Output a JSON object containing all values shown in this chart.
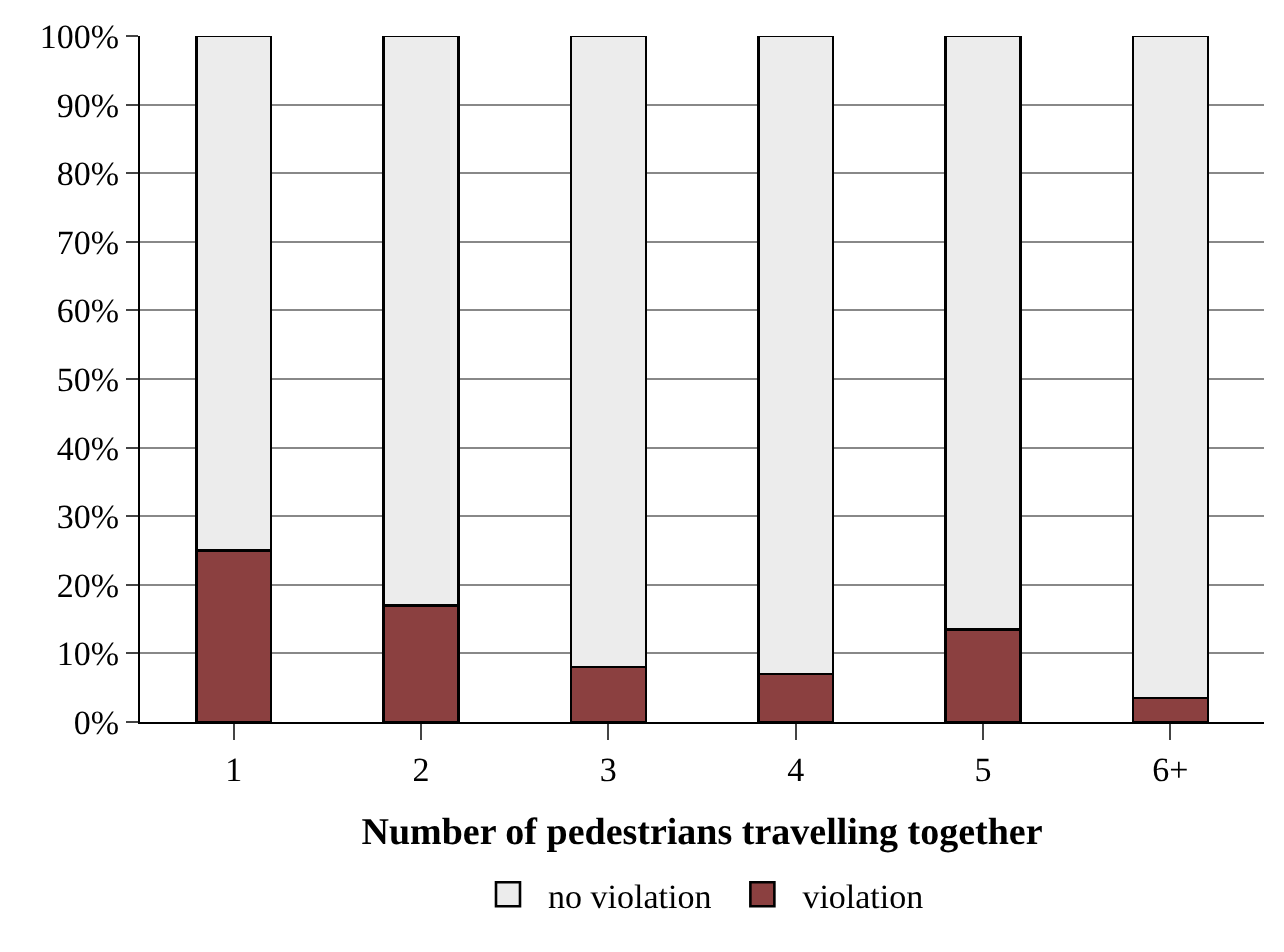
{
  "chart_data": {
    "type": "bar",
    "stacked": true,
    "xlabel": "Number of pedestrians travelling together",
    "categories": [
      "1",
      "2",
      "3",
      "4",
      "5",
      "6+"
    ],
    "series": [
      {
        "name": "violation",
        "color": "#8b4040",
        "values": [
          25,
          17,
          8,
          7,
          13.5,
          3.5
        ]
      },
      {
        "name": "no violation",
        "color": "#ececec",
        "values": [
          75,
          83,
          92,
          93,
          86.5,
          96.5
        ]
      }
    ],
    "ylim": [
      0,
      100
    ],
    "yticks": [
      {
        "value": 0,
        "label": "0%"
      },
      {
        "value": 10,
        "label": "10%"
      },
      {
        "value": 20,
        "label": "20%"
      },
      {
        "value": 30,
        "label": "30%"
      },
      {
        "value": 40,
        "label": "40%"
      },
      {
        "value": 50,
        "label": "50%"
      },
      {
        "value": 60,
        "label": "60%"
      },
      {
        "value": 70,
        "label": "70%"
      },
      {
        "value": 80,
        "label": "80%"
      },
      {
        "value": 90,
        "label": "90%"
      },
      {
        "value": 100,
        "label": "100%"
      }
    ],
    "grid": "y",
    "legend": "bottom"
  }
}
